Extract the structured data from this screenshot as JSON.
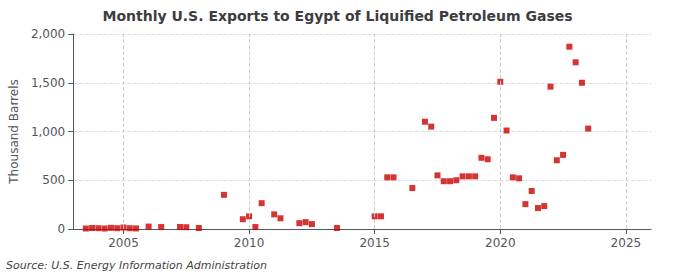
{
  "chart_data": {
    "type": "scatter",
    "title": "Monthly U.S. Exports to Egypt of Liquified Petroleum Gases",
    "ylabel": "Thousand Barrels",
    "annotations": [
      "Source: U.S. Energy Information Administration"
    ],
    "x": [
      2003.5,
      2003.75,
      2004.0,
      2004.25,
      2004.5,
      2004.75,
      2005.0,
      2005.25,
      2005.5,
      2006.0,
      2006.5,
      2007.25,
      2007.5,
      2008.0,
      2009.0,
      2009.75,
      2010.0,
      2010.25,
      2010.5,
      2011.0,
      2011.25,
      2012.0,
      2012.25,
      2012.5,
      2013.5,
      2015.0,
      2015.25,
      2015.5,
      2015.75,
      2016.5,
      2017.0,
      2017.25,
      2017.5,
      2017.75,
      2018.0,
      2018.25,
      2018.5,
      2018.75,
      2019.0,
      2019.25,
      2019.5,
      2019.75,
      2020.0,
      2020.25,
      2020.5,
      2020.75,
      2021.0,
      2021.25,
      2021.5,
      2021.75,
      2022.0,
      2022.25,
      2022.5,
      2022.75,
      2023.0,
      2023.25,
      2023.5
    ],
    "values": [
      5,
      10,
      8,
      5,
      12,
      8,
      15,
      8,
      6,
      25,
      20,
      20,
      18,
      10,
      350,
      100,
      130,
      20,
      265,
      150,
      110,
      60,
      70,
      50,
      10,
      130,
      130,
      530,
      530,
      420,
      1100,
      1050,
      550,
      490,
      490,
      500,
      540,
      540,
      540,
      730,
      715,
      1140,
      1510,
      1010,
      530,
      520,
      255,
      390,
      215,
      235,
      1460,
      705,
      760,
      1870,
      1710,
      1500,
      1030
    ],
    "color": "#cc0000",
    "marker": "square",
    "xlim": [
      2003,
      2026
    ],
    "xticks": [
      2005,
      2010,
      2015,
      2020,
      2025
    ],
    "ylim": [
      0,
      2000
    ],
    "yticks": [
      0,
      500,
      {
        "value": 1000,
        "label": "1,000"
      },
      {
        "value": 1500,
        "label": "1,500"
      },
      {
        "value": 2000,
        "label": "2,000"
      }
    ],
    "grid": true
  }
}
